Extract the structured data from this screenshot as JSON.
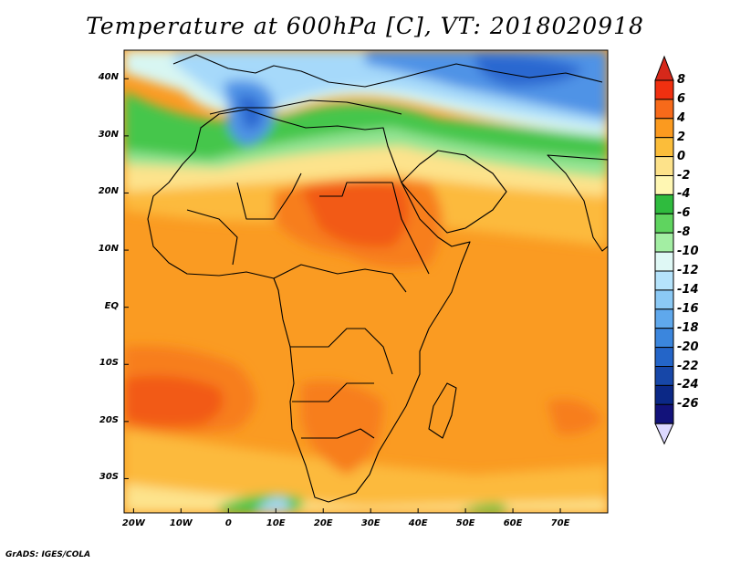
{
  "title": "Temperature at 600hPa [C], VT: 2018020918",
  "credit": "GrADS: IGES/COLA",
  "map": {
    "lat_labels": [
      "40N",
      "30N",
      "20N",
      "10N",
      "EQ",
      "10S",
      "20S",
      "30S"
    ],
    "lat_values": [
      40,
      30,
      20,
      10,
      0,
      -10,
      -20,
      -30
    ],
    "lon_labels": [
      "20W",
      "10W",
      "0",
      "10E",
      "20E",
      "30E",
      "40E",
      "50E",
      "60E",
      "70E"
    ],
    "lon_values": [
      -20,
      -10,
      0,
      10,
      20,
      30,
      40,
      50,
      60,
      70
    ],
    "lon_range": [
      -22,
      80
    ],
    "lat_range": [
      -36,
      45
    ]
  },
  "colorbar": {
    "labels": [
      "8",
      "6",
      "4",
      "2",
      "0",
      "-2",
      "-4",
      "-6",
      "-8",
      "-10",
      "-12",
      "-14",
      "-16",
      "-18",
      "-20",
      "-22",
      "-24",
      "-26"
    ],
    "values": [
      8,
      6,
      4,
      2,
      0,
      -2,
      -4,
      -6,
      -8,
      -10,
      -12,
      -14,
      -16,
      -18,
      -20,
      -22,
      -24,
      -26
    ],
    "colors": [
      "#f03010",
      "#f76a1a",
      "#fb9a1f",
      "#fbbd3a",
      "#fde28a",
      "#fff7b3",
      "#2fbb3e",
      "#5fd45f",
      "#a3eea3",
      "#dff8f5",
      "#b5e3fb",
      "#8bc9f5",
      "#5fa8ec",
      "#3b86dd",
      "#2465c8",
      "#1747a8",
      "#0b2886",
      "#12127a"
    ],
    "top_color": "#d6281a",
    "bottom_color": "#ddd9ff"
  },
  "palette": {
    "hot": "#f25a18",
    "warm": "#f77e1c",
    "mid": "#fa9b22",
    "light": "#fcba3c",
    "pale": "#fde38c",
    "green": "#44c64c",
    "lightgreen": "#93e493",
    "cyan": "#d8f6f2",
    "sky": "#a6d9fa",
    "blue": "#4f93e6",
    "deep": "#2a68d0"
  }
}
